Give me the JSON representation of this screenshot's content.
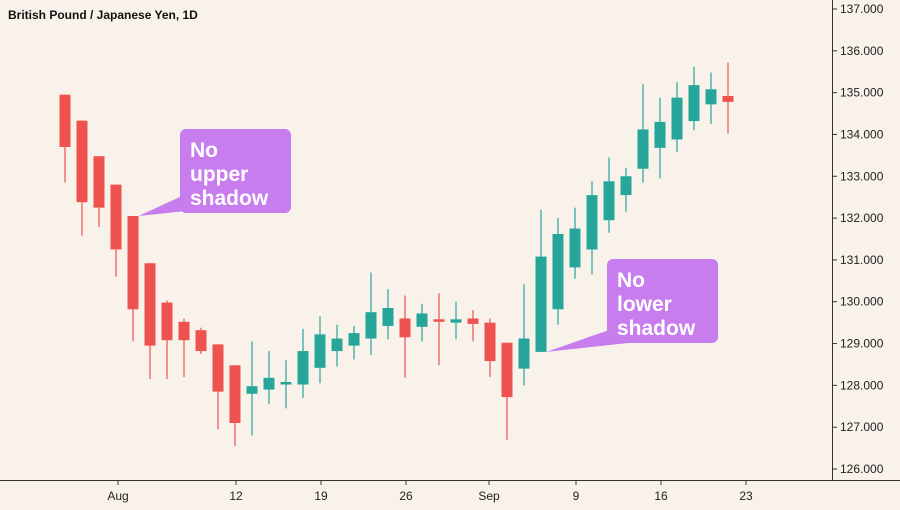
{
  "chart_data": {
    "type": "candlestick",
    "title": "British Pound / Japanese Yen, 1D",
    "ylim": [
      125.8,
      137.2
    ],
    "y_ticks": [
      "126.000",
      "127.000",
      "128.000",
      "129.000",
      "130.000",
      "131.000",
      "132.000",
      "133.000",
      "134.000",
      "135.000",
      "136.000",
      "137.000"
    ],
    "x_ticks": [
      "Aug",
      "12",
      "19",
      "26",
      "Sep",
      "9",
      "16",
      "23"
    ],
    "colors": {
      "up": "#26a69a",
      "down": "#ef5350",
      "callout": "#c77dee",
      "background": "#f8f2ea"
    },
    "candles": [
      {
        "open": 134.95,
        "high": 134.95,
        "low": 132.85,
        "close": 133.7
      },
      {
        "open": 134.33,
        "high": 134.33,
        "low": 131.58,
        "close": 132.38
      },
      {
        "open": 133.48,
        "high": 133.48,
        "low": 131.78,
        "close": 132.25
      },
      {
        "open": 132.8,
        "high": 132.8,
        "low": 130.6,
        "close": 131.25
      },
      {
        "open": 132.05,
        "high": 132.05,
        "low": 129.05,
        "close": 129.82
      },
      {
        "open": 130.92,
        "high": 130.92,
        "low": 128.15,
        "close": 128.95
      },
      {
        "open": 129.98,
        "high": 130.03,
        "low": 128.15,
        "close": 129.08
      },
      {
        "open": 129.52,
        "high": 129.6,
        "low": 128.2,
        "close": 129.08
      },
      {
        "open": 129.32,
        "high": 129.38,
        "low": 128.75,
        "close": 128.82
      },
      {
        "open": 128.98,
        "high": 128.98,
        "low": 126.95,
        "close": 127.85
      },
      {
        "open": 128.48,
        "high": 128.48,
        "low": 126.55,
        "close": 127.1
      },
      {
        "open": 127.8,
        "high": 129.05,
        "low": 126.8,
        "close": 127.98
      },
      {
        "open": 127.9,
        "high": 128.82,
        "low": 127.55,
        "close": 128.18
      },
      {
        "open": 128.05,
        "high": 128.6,
        "low": 127.45,
        "close": 128.08
      },
      {
        "open": 128.02,
        "high": 129.35,
        "low": 127.7,
        "close": 128.82
      },
      {
        "open": 128.42,
        "high": 129.65,
        "low": 128.05,
        "close": 129.22
      },
      {
        "open": 128.82,
        "high": 129.45,
        "low": 128.45,
        "close": 129.12
      },
      {
        "open": 128.95,
        "high": 129.42,
        "low": 128.62,
        "close": 129.25
      },
      {
        "open": 129.12,
        "high": 130.7,
        "low": 128.72,
        "close": 129.75
      },
      {
        "open": 129.42,
        "high": 130.3,
        "low": 129.1,
        "close": 129.85
      },
      {
        "open": 129.6,
        "high": 130.15,
        "low": 128.18,
        "close": 129.15
      },
      {
        "open": 129.4,
        "high": 129.95,
        "low": 129.05,
        "close": 129.72
      },
      {
        "open": 129.58,
        "high": 130.2,
        "low": 128.48,
        "close": 129.53
      },
      {
        "open": 129.5,
        "high": 130.0,
        "low": 129.1,
        "close": 129.58
      },
      {
        "open": 129.6,
        "high": 129.8,
        "low": 129.05,
        "close": 129.47
      },
      {
        "open": 129.5,
        "high": 129.6,
        "low": 128.2,
        "close": 128.58
      },
      {
        "open": 129.02,
        "high": 129.02,
        "low": 126.7,
        "close": 127.72
      },
      {
        "open": 128.4,
        "high": 130.42,
        "low": 128.0,
        "close": 129.12
      },
      {
        "open": 128.8,
        "high": 132.2,
        "low": 128.8,
        "close": 131.08
      },
      {
        "open": 129.82,
        "high": 132.0,
        "low": 129.45,
        "close": 131.62
      },
      {
        "open": 130.82,
        "high": 132.25,
        "low": 130.55,
        "close": 131.75
      },
      {
        "open": 131.25,
        "high": 132.88,
        "low": 130.65,
        "close": 132.55
      },
      {
        "open": 131.95,
        "high": 133.45,
        "low": 131.65,
        "close": 132.88
      },
      {
        "open": 132.55,
        "high": 133.2,
        "low": 132.15,
        "close": 133.0
      },
      {
        "open": 133.18,
        "high": 135.2,
        "low": 132.85,
        "close": 134.12
      },
      {
        "open": 133.68,
        "high": 134.88,
        "low": 132.95,
        "close": 134.3
      },
      {
        "open": 133.88,
        "high": 135.25,
        "low": 133.58,
        "close": 134.88
      },
      {
        "open": 134.32,
        "high": 135.62,
        "low": 134.1,
        "close": 135.18
      },
      {
        "open": 134.72,
        "high": 135.48,
        "low": 134.25,
        "close": 135.08
      },
      {
        "open": 134.92,
        "high": 135.72,
        "low": 134.02,
        "close": 134.78
      }
    ],
    "annotations": [
      {
        "text": "No\nupper\nshadow",
        "candle_index": 4,
        "side": "top-right"
      },
      {
        "text": "No\nlower\nshadow",
        "candle_index": 28,
        "side": "bottom-right"
      }
    ]
  }
}
